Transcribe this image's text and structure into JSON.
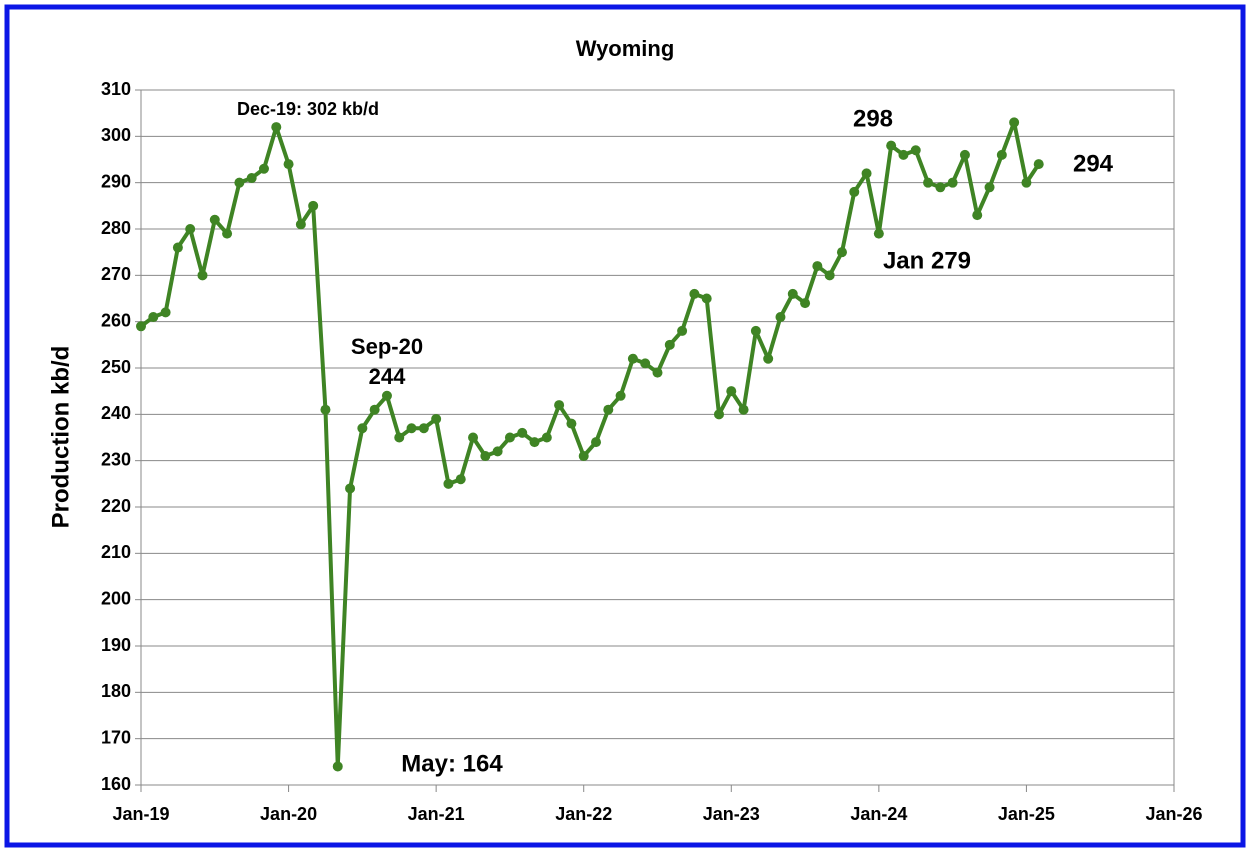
{
  "chart_data": {
    "type": "line",
    "title": "Wyoming",
    "y_label": "Production kb/d",
    "x": [
      "2019-01",
      "2019-02",
      "2019-03",
      "2019-04",
      "2019-05",
      "2019-06",
      "2019-07",
      "2019-08",
      "2019-09",
      "2019-10",
      "2019-11",
      "2019-12",
      "2020-01",
      "2020-02",
      "2020-03",
      "2020-04",
      "2020-05",
      "2020-06",
      "2020-07",
      "2020-08",
      "2020-09",
      "2020-10",
      "2020-11",
      "2020-12",
      "2021-01",
      "2021-02",
      "2021-03",
      "2021-04",
      "2021-05",
      "2021-06",
      "2021-07",
      "2021-08",
      "2021-09",
      "2021-10",
      "2021-11",
      "2021-12",
      "2022-01",
      "2022-02",
      "2022-03",
      "2022-04",
      "2022-05",
      "2022-06",
      "2022-07",
      "2022-08",
      "2022-09",
      "2022-10",
      "2022-11",
      "2022-12",
      "2023-01",
      "2023-02",
      "2023-03",
      "2023-04",
      "2023-05",
      "2023-06",
      "2023-07",
      "2023-08",
      "2023-09",
      "2023-10",
      "2023-11",
      "2023-12",
      "2024-01",
      "2024-02",
      "2024-03",
      "2024-04",
      "2024-05",
      "2024-06",
      "2024-07",
      "2024-08",
      "2024-09",
      "2024-10",
      "2024-11",
      "2024-12",
      "2025-01",
      "2025-02"
    ],
    "series": [
      {
        "name": "Wyoming",
        "color": "#3f8424",
        "values": [
          259,
          261,
          262,
          276,
          280,
          270,
          282,
          279,
          290,
          291,
          293,
          302,
          294,
          281,
          285,
          241,
          164,
          224,
          237,
          241,
          244,
          235,
          237,
          237,
          239,
          225,
          226,
          235,
          231,
          232,
          235,
          236,
          234,
          235,
          242,
          238,
          231,
          234,
          241,
          244,
          252,
          251,
          249,
          255,
          258,
          266,
          265,
          240,
          245,
          241,
          258,
          252,
          261,
          266,
          264,
          272,
          270,
          275,
          288,
          292,
          279,
          298,
          296,
          297,
          290,
          289,
          290,
          296,
          283,
          289,
          296,
          303,
          290,
          294
        ]
      }
    ],
    "xlim": [
      "2019-01",
      "2026-01"
    ],
    "xticks": [
      {
        "value": "2019-01",
        "label": "Jan-19"
      },
      {
        "value": "2020-01",
        "label": "Jan-20"
      },
      {
        "value": "2021-01",
        "label": "Jan-21"
      },
      {
        "value": "2022-01",
        "label": "Jan-22"
      },
      {
        "value": "2023-01",
        "label": "Jan-23"
      },
      {
        "value": "2024-01",
        "label": "Jan-24"
      },
      {
        "value": "2025-01",
        "label": "Jan-25"
      },
      {
        "value": "2026-01",
        "label": "Jan-26"
      }
    ],
    "ylim": [
      160,
      310
    ],
    "yticks": [
      160,
      170,
      180,
      190,
      200,
      210,
      220,
      230,
      240,
      250,
      260,
      270,
      280,
      290,
      300,
      310
    ],
    "grid": true,
    "annotations": [
      "Dec-19: 302 kb/d",
      "Sep-20",
      "244",
      "May: 164",
      "298",
      "Jan 279",
      "294"
    ]
  }
}
